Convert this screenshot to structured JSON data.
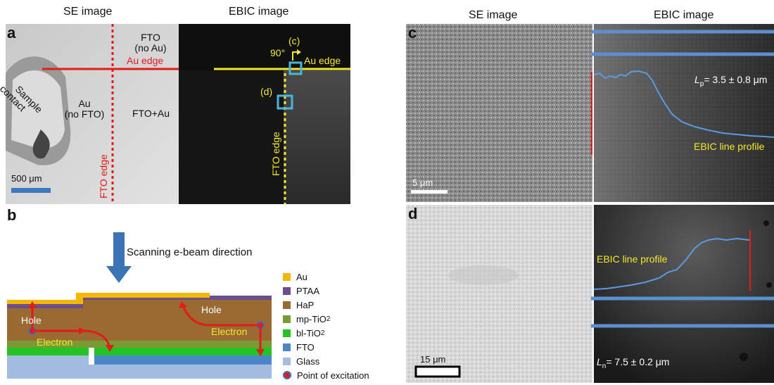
{
  "panel_a": {
    "letter": "a",
    "header_se": "SE image",
    "header_ebic": "EBIC image",
    "fto_no_au_1": "FTO",
    "fto_no_au_2": "(no Au)",
    "au_edge_red": "Au  edge",
    "sample_contact_1": "Sample",
    "sample_contact_2": "contact",
    "au_no_fto_1": "Au",
    "au_no_fto_2": "(no FTO)",
    "fto_au": "FTO+Au",
    "fto_edge_red": "FTO edge",
    "scale": "500 μm",
    "angle": "90°",
    "label_c": "(c)",
    "au_edge_yellow": "Au edge",
    "label_d": "(d)",
    "fto_edge_yellow": "FTO edge"
  },
  "panel_b": {
    "letter": "b",
    "scan_label": "Scanning e-beam direction",
    "hole_left": "Hole",
    "electron_left": "Electron",
    "hole_right": "Hole",
    "electron_right": "Electron",
    "legend": [
      {
        "label": "Au",
        "color": "#f5b800"
      },
      {
        "label": "PTAA",
        "color": "#6b4f8c"
      },
      {
        "label": "HaP",
        "color": "#9a6a33"
      },
      {
        "label": "mp-TiO",
        "sub": "2",
        "color": "#7a9a34"
      },
      {
        "label": "bl-TiO",
        "sub": "2",
        "color": "#22c322"
      },
      {
        "label": "FTO",
        "color": "#4a86c8"
      },
      {
        "label": "Glass",
        "color": "#a3bde0"
      },
      {
        "label": "Point of excitation",
        "color": "#e31b1b"
      }
    ]
  },
  "panel_c": {
    "letter": "c",
    "header_se": "SE image",
    "header_ebic": "EBIC image",
    "lp_prefix": "L",
    "lp_sub": "p",
    "lp_value": "= 3.5 ± 0.8 μm",
    "profile_label": "EBIC line profile",
    "scale": "5 μm"
  },
  "panel_d": {
    "letter": "d",
    "profile_label": "EBIC line profile",
    "ln_prefix": "L",
    "ln_sub": "n",
    "ln_value": "= 7.5 ± 0.2 μm",
    "scale": "15 μm"
  }
}
